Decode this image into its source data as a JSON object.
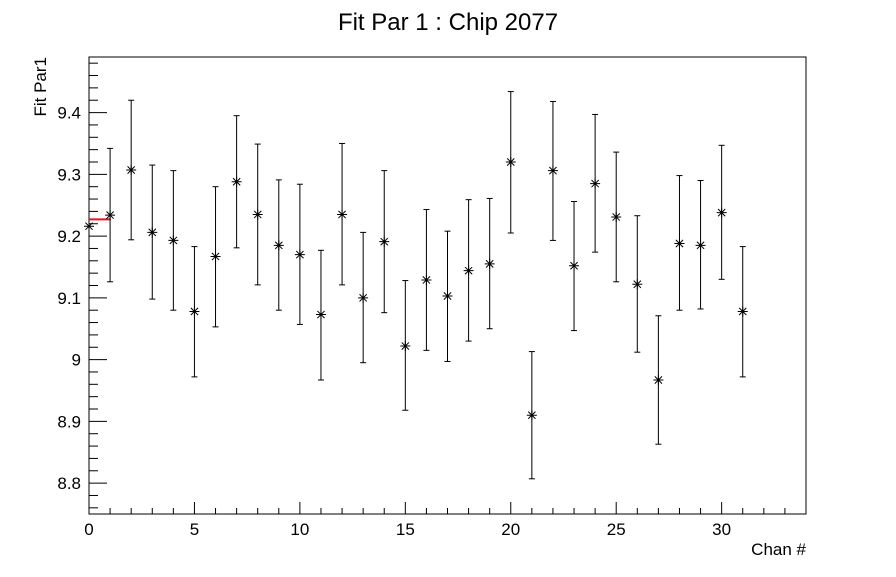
{
  "chart_data": {
    "type": "scatter",
    "title": "Fit Par 1 : Chip 2077",
    "xlabel": "Chan #",
    "ylabel": "Fit Par1",
    "xlim": [
      0,
      34
    ],
    "ylim": [
      8.75,
      9.49
    ],
    "x_ticks": [
      0,
      5,
      10,
      15,
      20,
      25,
      30
    ],
    "x_tick_labels": [
      "0",
      "5",
      "10",
      "15",
      "20",
      "25",
      "30"
    ],
    "y_ticks": [
      8.8,
      8.9,
      9.0,
      9.1,
      9.2,
      9.3,
      9.4
    ],
    "y_tick_labels": [
      "8.8",
      "8.9",
      "9",
      "9.1",
      "9.2",
      "9.3",
      "9.4"
    ],
    "grid": false,
    "marker": "asterisk",
    "series": [
      {
        "x": [
          0,
          1,
          2,
          3,
          4,
          5,
          6,
          7,
          8,
          9,
          10,
          11,
          12,
          13,
          14,
          15,
          16,
          17,
          18,
          19,
          20,
          21,
          22,
          23,
          24,
          25,
          26,
          27,
          28,
          29,
          30,
          31
        ],
        "y": [
          9.216,
          9.234,
          9.307,
          9.206,
          9.193,
          9.078,
          9.167,
          9.288,
          9.235,
          9.185,
          9.17,
          9.073,
          9.235,
          9.1,
          9.191,
          9.022,
          9.129,
          9.103,
          9.144,
          9.155,
          9.32,
          8.91,
          9.306,
          9.152,
          9.285,
          9.231,
          9.122,
          8.967,
          9.188,
          9.185,
          9.238,
          9.078
        ],
        "err_low": [
          null,
          9.126,
          9.194,
          9.098,
          9.08,
          8.972,
          9.053,
          9.181,
          9.121,
          9.08,
          9.057,
          8.967,
          9.121,
          8.995,
          9.076,
          8.918,
          9.015,
          8.997,
          9.03,
          9.05,
          9.205,
          8.807,
          9.193,
          9.047,
          9.174,
          9.126,
          9.012,
          8.863,
          9.08,
          9.082,
          9.13,
          8.972
        ],
        "err_high": [
          null,
          9.342,
          9.42,
          9.315,
          9.306,
          9.183,
          9.28,
          9.395,
          9.349,
          9.291,
          9.284,
          9.177,
          9.35,
          9.206,
          9.306,
          9.128,
          9.243,
          9.208,
          9.259,
          9.261,
          9.434,
          9.013,
          9.418,
          9.256,
          9.397,
          9.336,
          9.233,
          9.071,
          9.298,
          9.29,
          9.347,
          9.183
        ]
      }
    ],
    "annotations": [
      {
        "type": "segment",
        "x": [
          0,
          1
        ],
        "y": 9.227,
        "color": "#e8121b"
      }
    ]
  }
}
